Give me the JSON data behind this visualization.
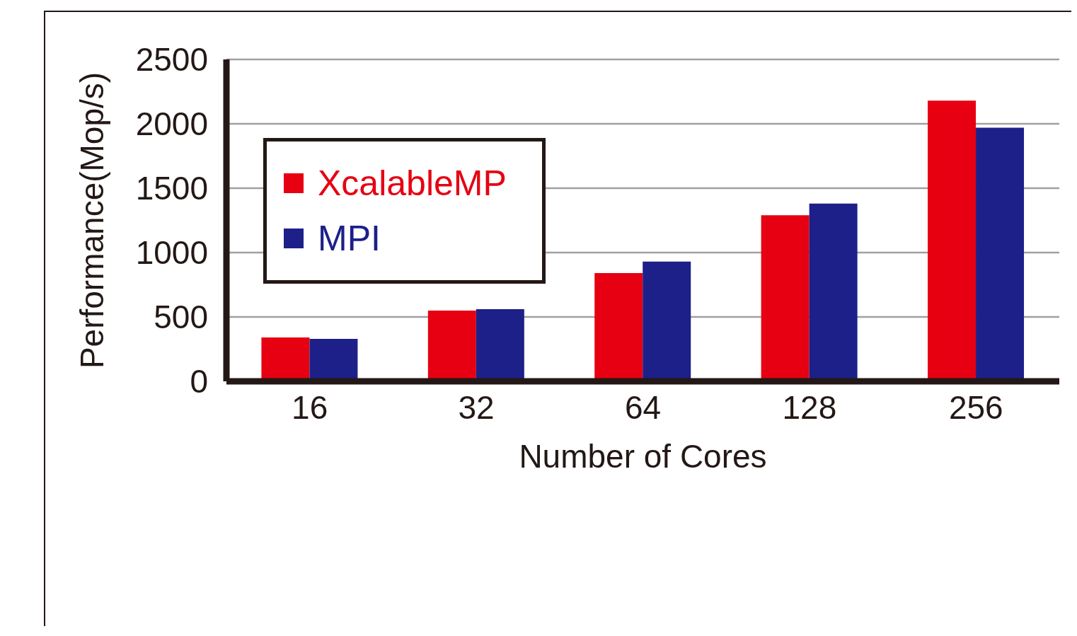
{
  "chart_data": {
    "type": "bar",
    "xlabel": "Number of Cores",
    "ylabel": "Performance(Mop/s)",
    "categories": [
      "16",
      "32",
      "64",
      "128",
      "256"
    ],
    "series": [
      {
        "name": "XcalableMP",
        "color": "#e60012",
        "values": [
          340,
          550,
          840,
          1290,
          2180
        ]
      },
      {
        "name": "MPI",
        "color": "#1d2088",
        "values": [
          330,
          560,
          930,
          1380,
          1970
        ]
      }
    ],
    "ylim": [
      0,
      2500
    ],
    "yticks": [
      0,
      500,
      1000,
      1500,
      2000,
      2500
    ],
    "grid": "y",
    "legend": "top left"
  }
}
